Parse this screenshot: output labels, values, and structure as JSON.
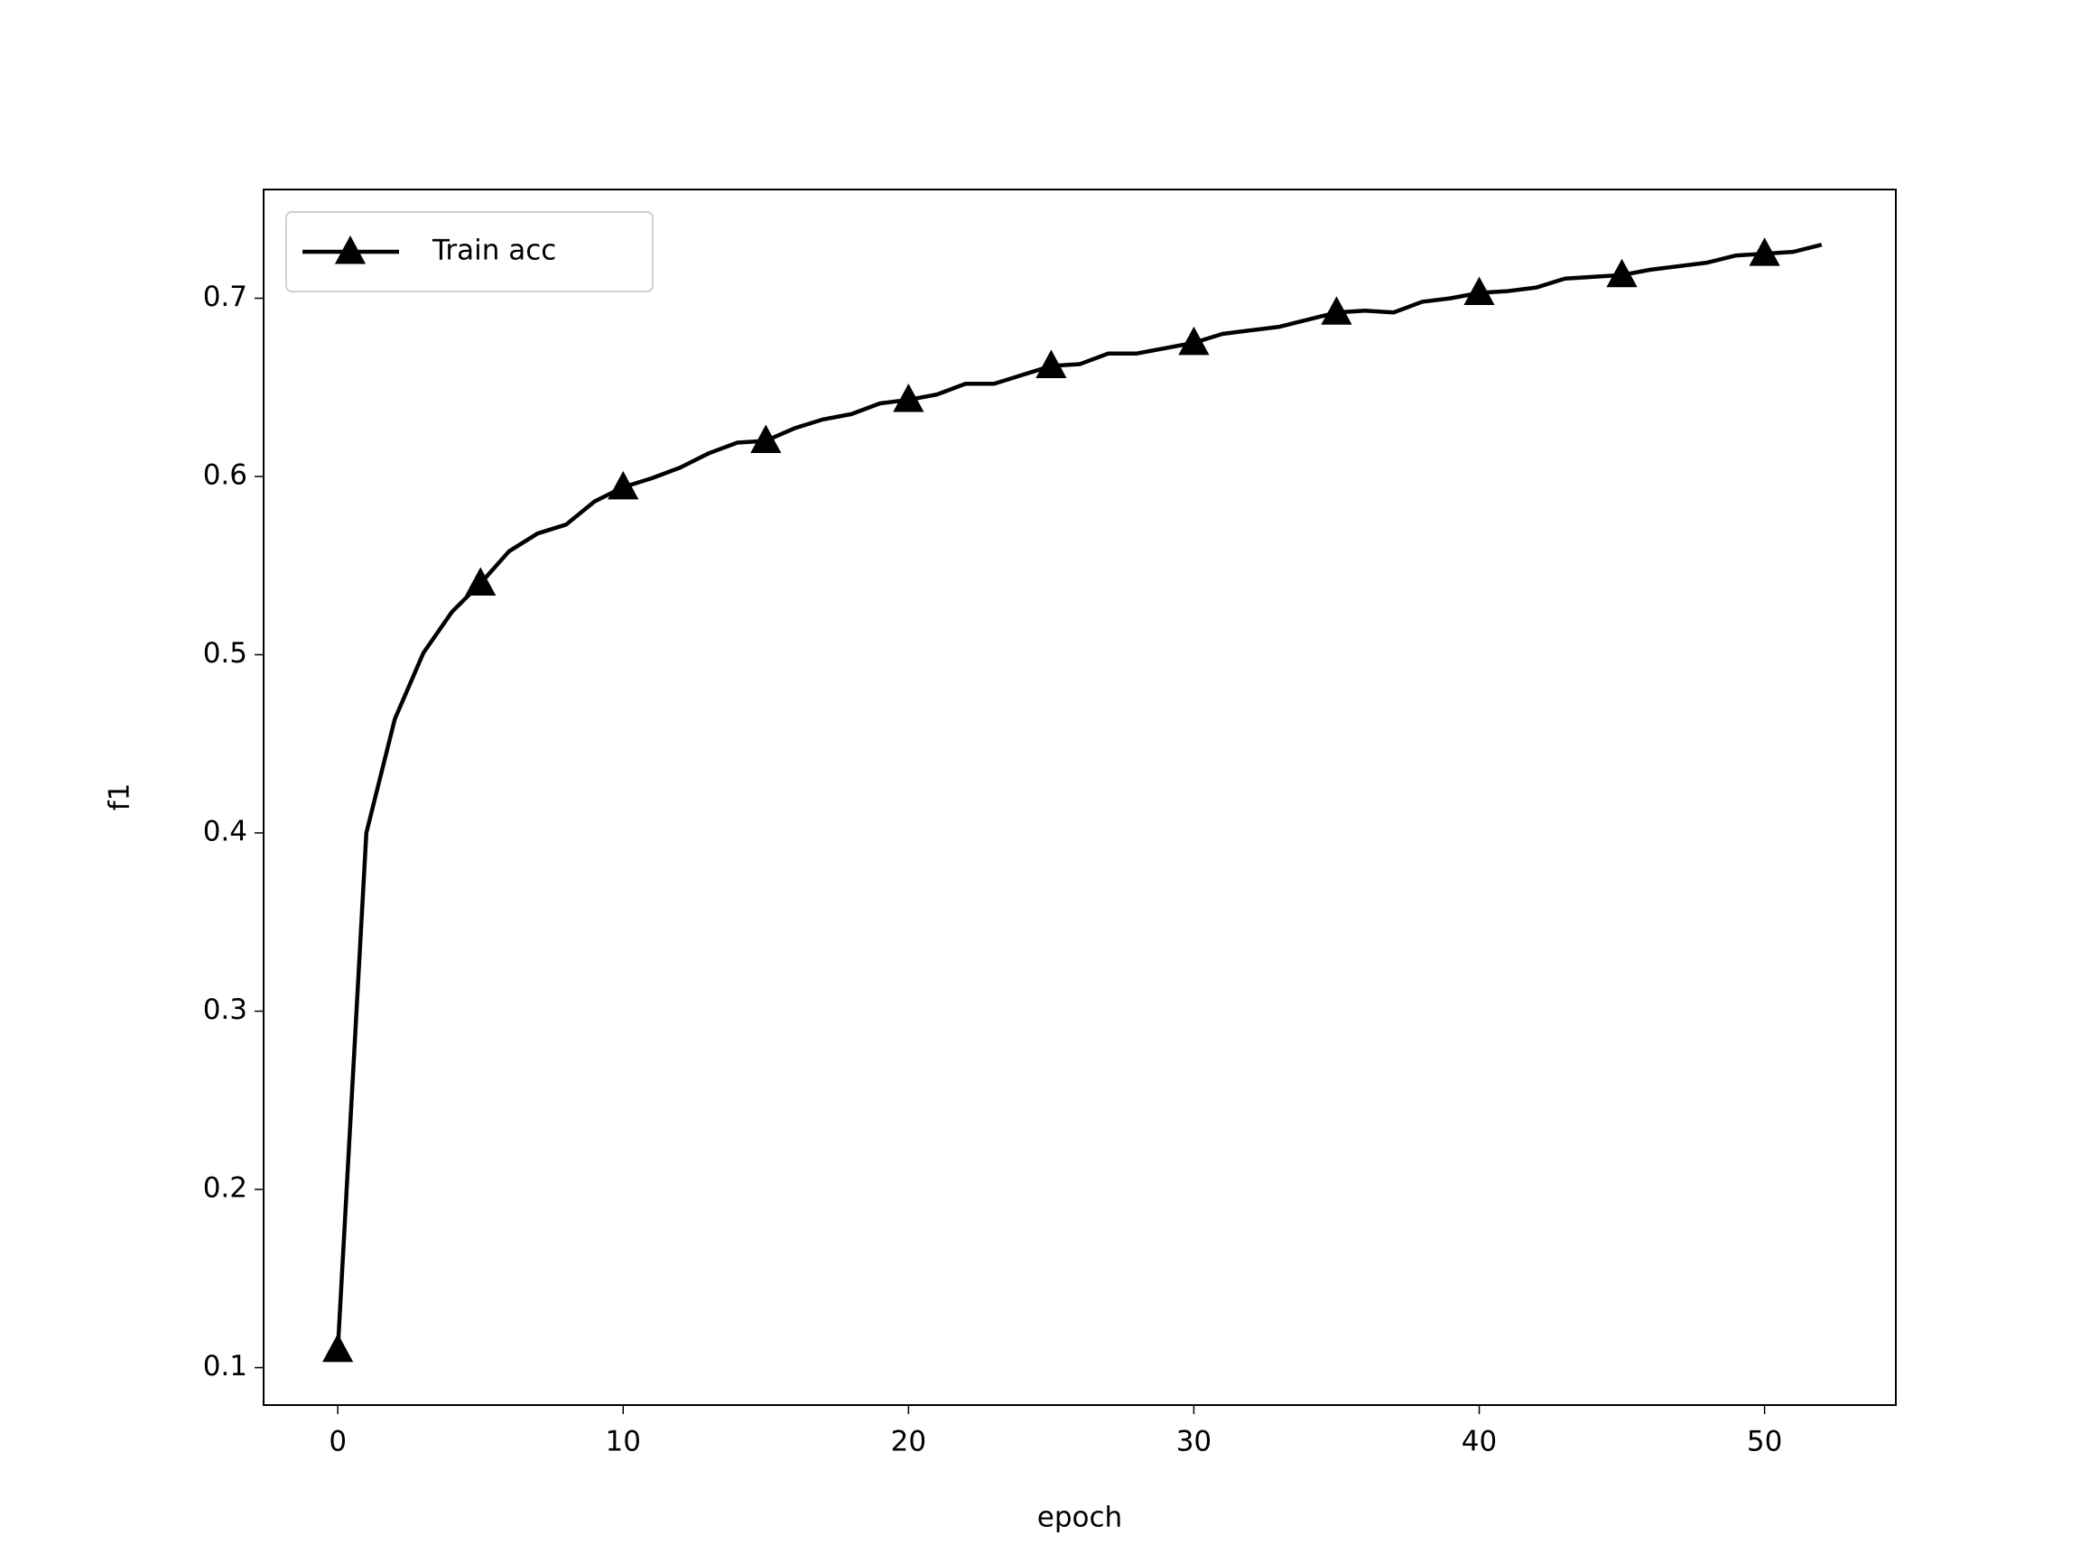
{
  "chart_data": {
    "type": "line",
    "xlabel": "epoch",
    "ylabel": "f1",
    "x": [
      0,
      1,
      2,
      3,
      4,
      5,
      6,
      7,
      8,
      9,
      10,
      11,
      12,
      13,
      14,
      15,
      16,
      17,
      18,
      19,
      20,
      21,
      22,
      23,
      24,
      25,
      26,
      27,
      28,
      29,
      30,
      31,
      32,
      33,
      34,
      35,
      36,
      37,
      38,
      39,
      40,
      41,
      42,
      43,
      44,
      45,
      46,
      47,
      48,
      49,
      50,
      51,
      52
    ],
    "series": [
      {
        "name": "Train acc",
        "color": "#000000",
        "marker": "triangle",
        "markevery": 5,
        "values": [
          0.11,
          0.4,
          0.464,
          0.501,
          0.524,
          0.54,
          0.558,
          0.568,
          0.573,
          0.586,
          0.594,
          0.599,
          0.605,
          0.613,
          0.619,
          0.62,
          0.627,
          0.632,
          0.635,
          0.641,
          0.643,
          0.646,
          0.652,
          0.652,
          0.657,
          0.662,
          0.663,
          0.669,
          0.669,
          0.672,
          0.675,
          0.68,
          0.682,
          0.684,
          0.688,
          0.692,
          0.693,
          0.692,
          0.698,
          0.7,
          0.703,
          0.704,
          0.706,
          0.711,
          0.712,
          0.713,
          0.716,
          0.718,
          0.72,
          0.724,
          0.725,
          0.726,
          0.73
        ]
      }
    ],
    "xlim": [
      -2.6,
      54.6
    ],
    "xticks": [
      0,
      10,
      20,
      30,
      40,
      50
    ],
    "ylim": [
      0.079,
      0.761
    ],
    "yticks": [
      0.1,
      0.2,
      0.3,
      0.4,
      0.5,
      0.6,
      0.7
    ],
    "grid": false,
    "legend": "upper left"
  }
}
